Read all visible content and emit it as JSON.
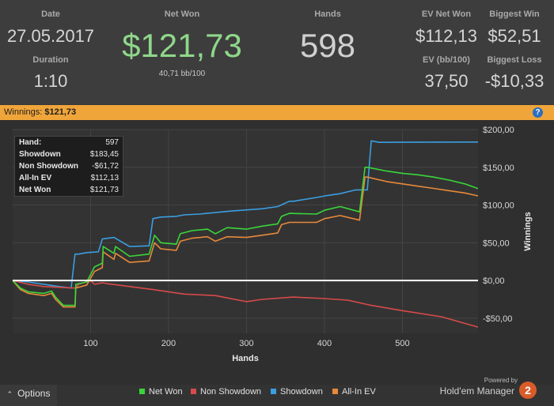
{
  "stats": {
    "date_label": "Date",
    "date_value": "27.05.2017",
    "duration_label": "Duration",
    "duration_value": "1:10",
    "net_won_label": "Net Won",
    "net_won_value": "$121,73",
    "net_won_sub": "40,71 bb/100",
    "hands_label": "Hands",
    "hands_value": "598",
    "ev_net_won_label": "EV Net Won",
    "ev_net_won_value": "$112,13",
    "ev_bb_label": "EV (bb/100)",
    "ev_bb_value": "37,50",
    "biggest_win_label": "Biggest Win",
    "biggest_win_value": "$52,51",
    "biggest_loss_label": "Biggest Loss",
    "biggest_loss_value": "-$10,33"
  },
  "winnings_bar": {
    "label": "Winnings:",
    "value": "$121,73",
    "help_icon": "?"
  },
  "tooltip": {
    "rows": [
      {
        "key": "Hand:",
        "value": "597"
      },
      {
        "key": "Showdown",
        "value": "$183,45"
      },
      {
        "key": "Non Showdown",
        "value": "-$61,72"
      },
      {
        "key": "All-In EV",
        "value": "$112,13"
      },
      {
        "key": "Net Won",
        "value": "$121,73"
      }
    ]
  },
  "footer": {
    "options_label": "Options",
    "options_icon": "chevron-up-icon",
    "powered_by": "Powered by",
    "brand": "Hold'em Manager",
    "logo_text": "2"
  },
  "colors": {
    "net_won": "#39d639",
    "non_showdown": "#d84a4a",
    "showdown": "#3b9ee0",
    "allin_ev": "#e8893a",
    "zero_line": "#ffffff"
  },
  "chart_data": {
    "type": "line",
    "xlabel": "Hands",
    "ylabel": "Winnings",
    "xlim": [
      0,
      597
    ],
    "ylim": [
      -70,
      200
    ],
    "x_ticks": [
      100,
      200,
      300,
      400,
      500
    ],
    "x_tick_labels": [
      "100",
      "200",
      "300",
      "400",
      "500"
    ],
    "y_ticks": [
      200,
      150,
      100,
      50,
      0,
      -50
    ],
    "y_tick_labels": [
      "$200,00",
      "$150,00",
      "$100,00",
      "$50,00",
      "$0,00",
      "-$50,00"
    ],
    "series": [
      {
        "name": "Net Won",
        "color": "#39d639",
        "x": [
          0,
          10,
          20,
          40,
          50,
          55,
          65,
          80,
          81,
          95,
          105,
          115,
          116,
          130,
          132,
          150,
          175,
          182,
          190,
          210,
          215,
          230,
          250,
          260,
          275,
          300,
          320,
          340,
          345,
          355,
          390,
          400,
          420,
          445,
          452,
          455,
          480,
          500,
          520,
          540,
          560,
          580,
          597
        ],
        "y": [
          0,
          -10,
          -15,
          -17,
          -14,
          -22,
          -33,
          -33,
          -5,
          -2,
          18,
          23,
          45,
          36,
          45,
          32,
          35,
          60,
          50,
          48,
          62,
          66,
          68,
          62,
          70,
          68,
          72,
          75,
          85,
          89,
          88,
          93,
          98,
          91,
          150,
          150,
          145,
          142,
          140,
          137,
          133,
          128,
          121.73
        ]
      },
      {
        "name": "Non Showdown",
        "color": "#d84a4a",
        "x": [
          0,
          20,
          40,
          80,
          85,
          100,
          105,
          115,
          120,
          180,
          220,
          260,
          300,
          320,
          360,
          400,
          430,
          460,
          500,
          550,
          597
        ],
        "y": [
          0,
          -5,
          -8,
          -10,
          -5,
          0,
          -5,
          -3,
          -4,
          -12,
          -18,
          -20,
          -28,
          -25,
          -22,
          -24,
          -26,
          -33,
          -40,
          -48,
          -61.72
        ]
      },
      {
        "name": "Showdown",
        "color": "#3b9ee0",
        "x": [
          0,
          20,
          40,
          60,
          75,
          80,
          85,
          95,
          110,
          115,
          130,
          150,
          175,
          180,
          190,
          210,
          220,
          240,
          280,
          320,
          340,
          355,
          360,
          390,
          400,
          420,
          440,
          455,
          460,
          470,
          597
        ],
        "y": [
          0,
          -2,
          -5,
          -8,
          -10,
          35,
          35,
          37,
          38,
          55,
          57,
          45,
          46,
          82,
          84,
          85,
          87,
          88,
          92,
          95,
          98,
          105,
          105,
          110,
          112,
          115,
          120,
          120,
          185,
          183,
          183.45
        ]
      },
      {
        "name": "All-In EV",
        "color": "#e8893a",
        "x": [
          0,
          10,
          20,
          40,
          50,
          55,
          65,
          80,
          81,
          95,
          105,
          115,
          116,
          130,
          132,
          150,
          175,
          182,
          190,
          210,
          215,
          230,
          250,
          260,
          275,
          300,
          320,
          340,
          345,
          355,
          390,
          400,
          420,
          445,
          452,
          455,
          480,
          500,
          520,
          540,
          560,
          580,
          597
        ],
        "y": [
          0,
          -12,
          -17,
          -20,
          -17,
          -25,
          -35,
          -35,
          -10,
          -6,
          12,
          17,
          38,
          28,
          36,
          24,
          26,
          50,
          42,
          40,
          52,
          56,
          58,
          52,
          58,
          57,
          60,
          63,
          74,
          77,
          77,
          82,
          86,
          80,
          137,
          137,
          131,
          128,
          125,
          122,
          119,
          116,
          112.13
        ]
      }
    ]
  }
}
